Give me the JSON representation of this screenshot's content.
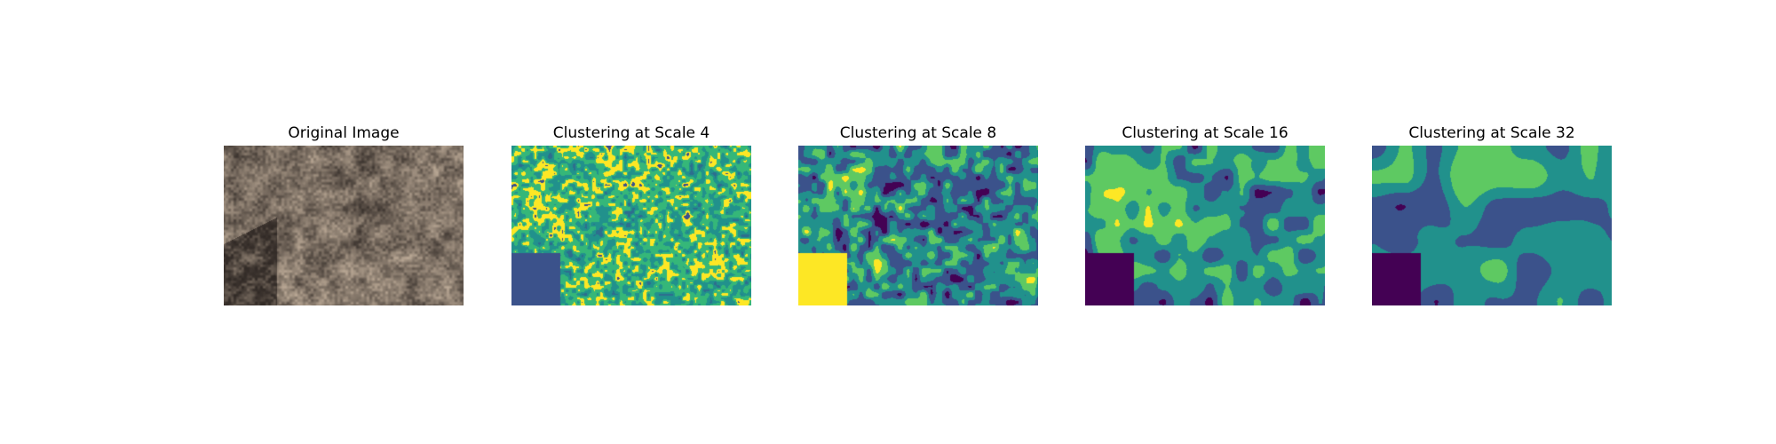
{
  "figure": {
    "panels": [
      {
        "title": "Original Image",
        "kind": "photo",
        "colors": [
          "#6b5848",
          "#a08d7a",
          "#c2b09c",
          "#d6c6b3",
          "#8a7664",
          "#3a322d"
        ]
      },
      {
        "title": "Clustering at Scale 4",
        "kind": "clusters",
        "scale": 4,
        "colors": [
          "#2d6e8e",
          "#21918c",
          "#35b779",
          "#fde725",
          "#3b528b"
        ]
      },
      {
        "title": "Clustering at Scale 8",
        "kind": "clusters",
        "scale": 8,
        "colors": [
          "#440154",
          "#3b528b",
          "#21918c",
          "#5ec962",
          "#fde725"
        ]
      },
      {
        "title": "Clustering at Scale 16",
        "kind": "clusters",
        "scale": 16,
        "colors": [
          "#440154",
          "#3b528b",
          "#21918c",
          "#5ec962",
          "#fde725"
        ]
      },
      {
        "title": "Clustering at Scale 32",
        "kind": "clusters",
        "scale": 32,
        "colors": [
          "#440154",
          "#3b528b",
          "#21918c",
          "#5ec962",
          "#fde725"
        ]
      }
    ]
  }
}
